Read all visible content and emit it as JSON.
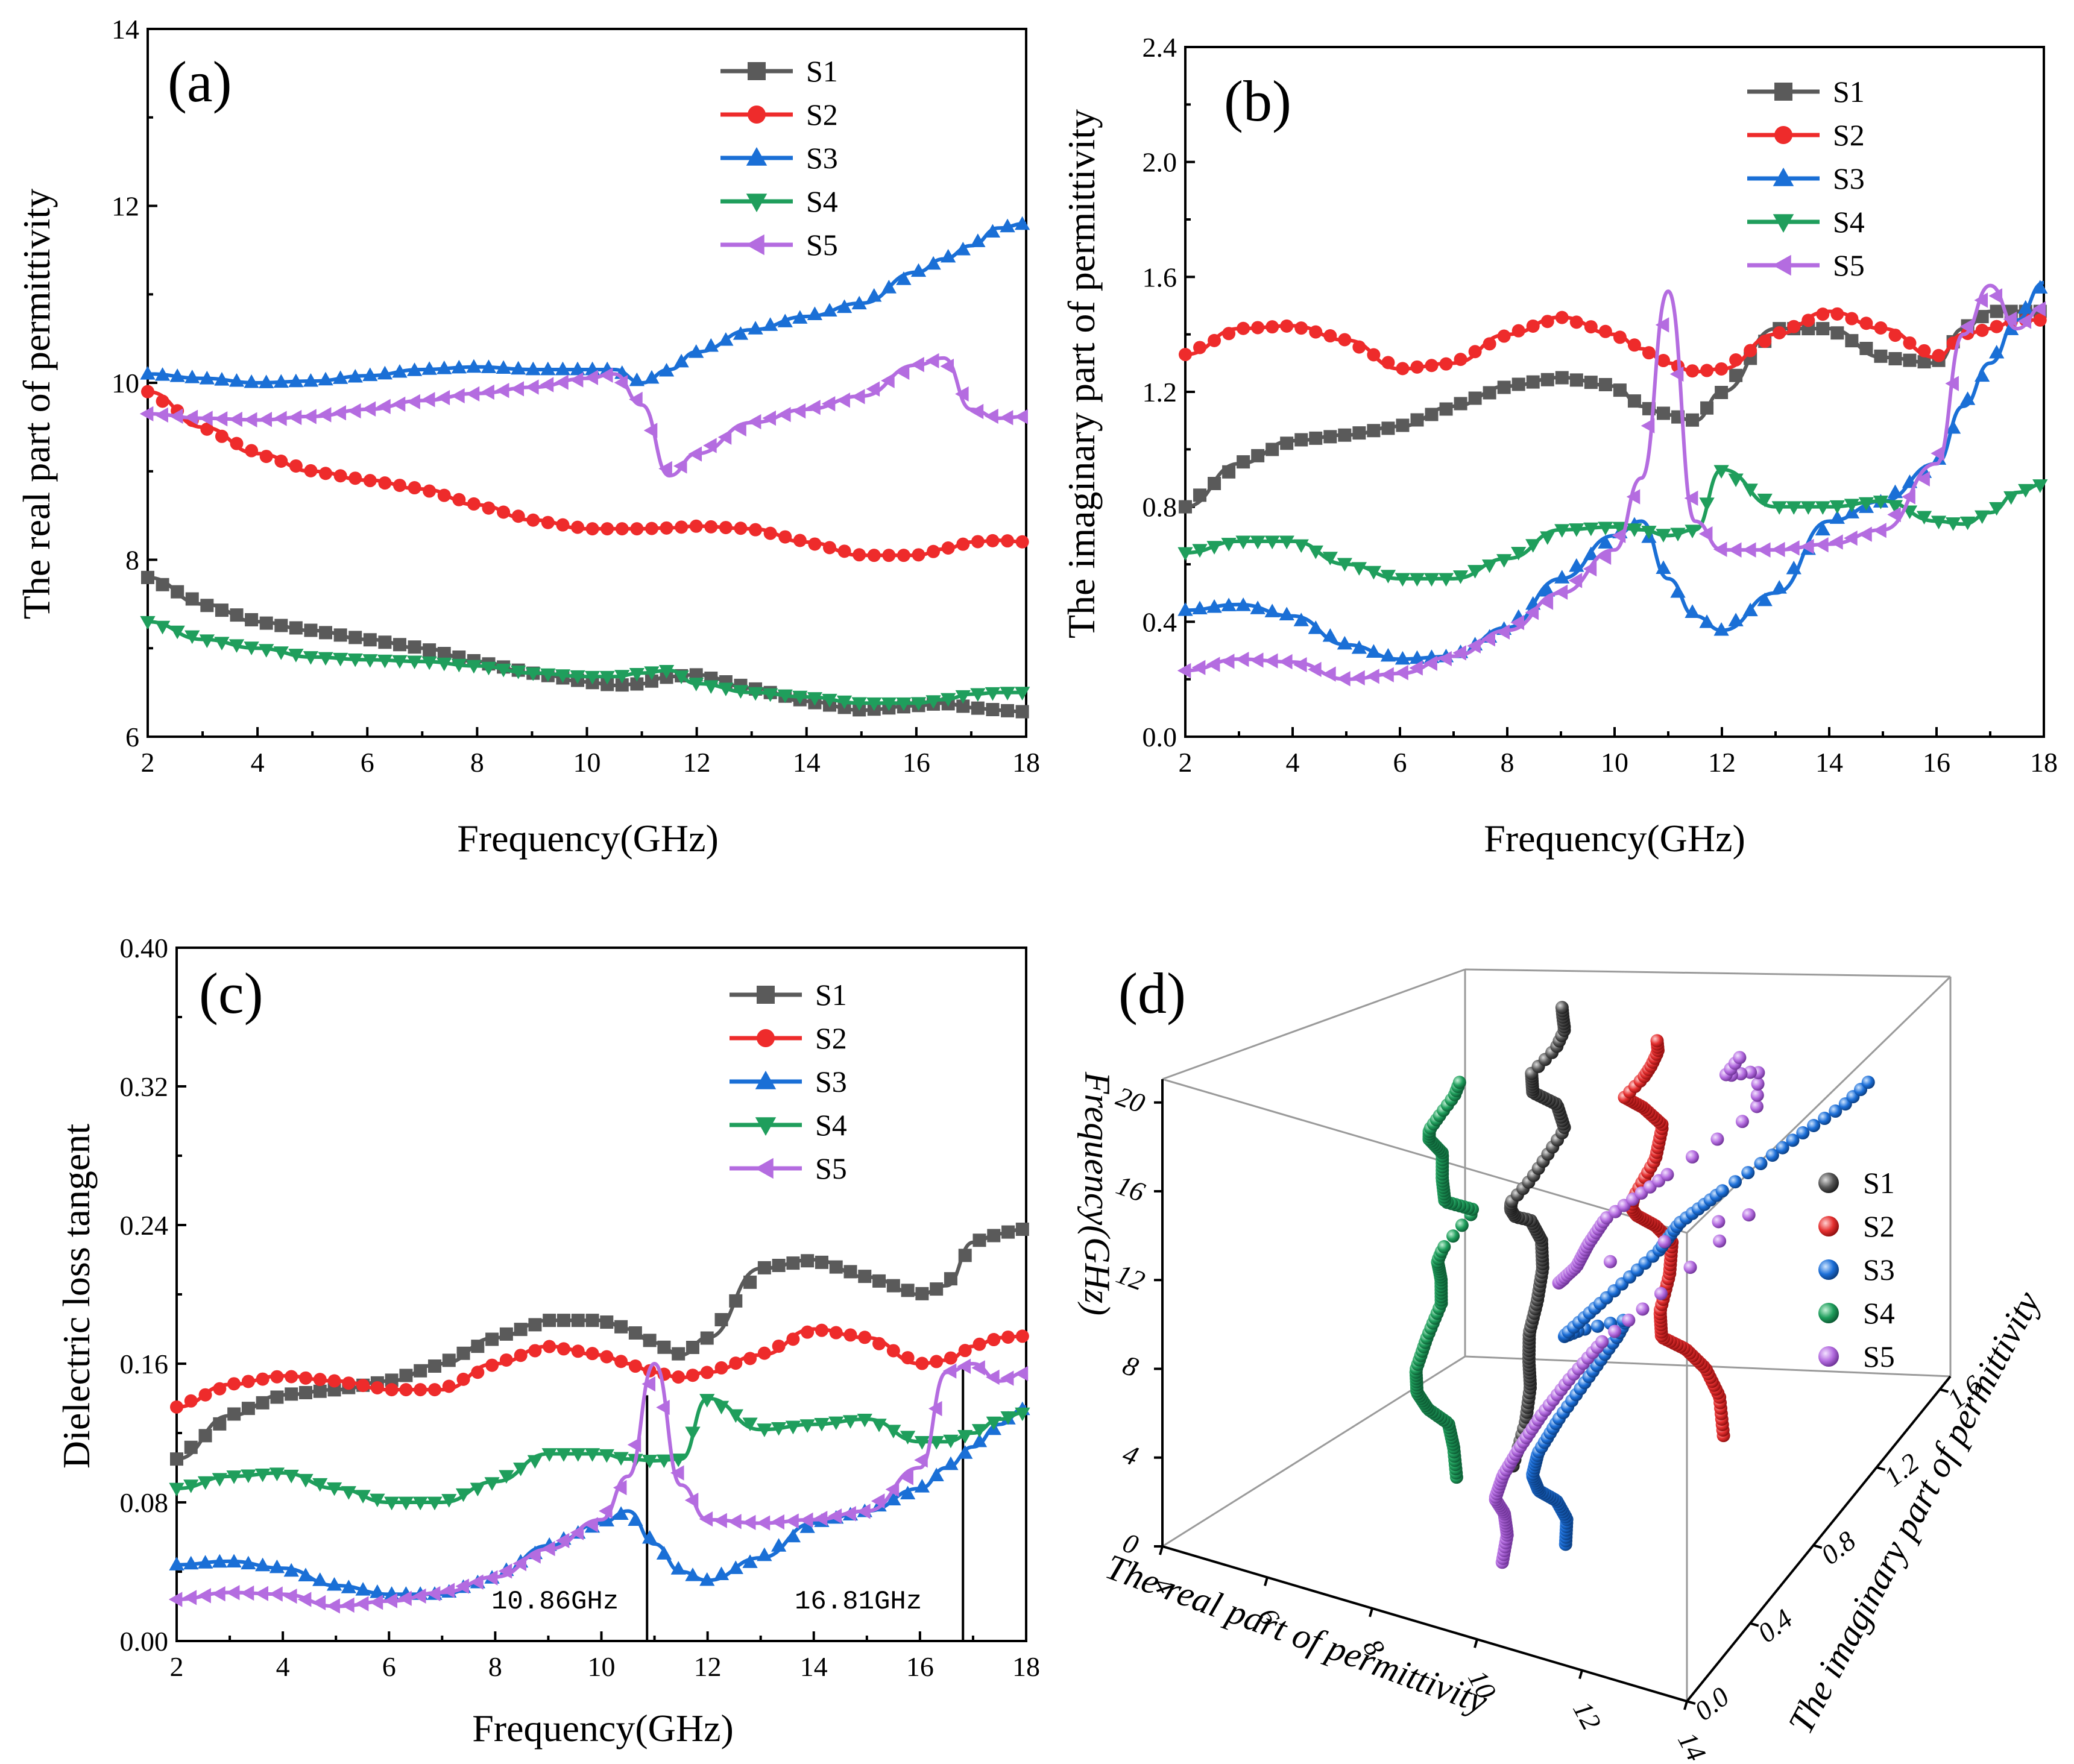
{
  "colors": {
    "S1": "#5a5a5a",
    "S2": "#ee2b2b",
    "S3": "#1a6fd6",
    "S4": "#1f9e5c",
    "S5": "#b46ce0"
  },
  "markers": {
    "S1": "square",
    "S2": "circle",
    "S3": "triangle-up",
    "S4": "triangle-down",
    "S5": "triangle-left"
  },
  "panels": {
    "a": {
      "label": "(a)",
      "xlabel": "Frequency(GHz)",
      "ylabel": "The real part of  permittivity"
    },
    "b": {
      "label": "(b)",
      "xlabel": "Frequency(GHz)",
      "ylabel": "The imaginary part of permittivity"
    },
    "c": {
      "label": "(c)",
      "xlabel": "Frequency(GHz)",
      "ylabel": "Dielectric loss tangent",
      "annotations": [
        "10.86GHz",
        "16.81GHz"
      ]
    },
    "d": {
      "label": "(d)",
      "xlabel": "The real part of permittivity",
      "ylabel": "Frequency(GHz)",
      "zlabel": "The imaginary part of permittivity"
    }
  },
  "chart_data": [
    {
      "id": "a",
      "type": "line",
      "title": "(a)",
      "xlabel": "Frequency(GHz)",
      "ylabel": "The real part of  permittivity",
      "xlim": [
        2,
        18
      ],
      "ylim": [
        6,
        14
      ],
      "xticks": [
        "2",
        "4",
        "6",
        "8",
        "10",
        "12",
        "14",
        "16",
        "18"
      ],
      "yticks": [
        "6",
        "8",
        "10",
        "12",
        "14"
      ],
      "legend": "top-right",
      "x": [
        2,
        3,
        4,
        5,
        6,
        7,
        8,
        9,
        10,
        10.5,
        11,
        11.5,
        12,
        13,
        14,
        15,
        16,
        16.5,
        17,
        17.5,
        18
      ],
      "series": [
        {
          "name": "S1",
          "values": [
            7.8,
            7.5,
            7.3,
            7.2,
            7.1,
            7.0,
            6.85,
            6.72,
            6.62,
            6.58,
            6.6,
            6.68,
            6.7,
            6.55,
            6.4,
            6.3,
            6.35,
            6.38,
            6.33,
            6.3,
            6.28
          ]
        },
        {
          "name": "S2",
          "values": [
            9.9,
            9.5,
            9.2,
            9.0,
            8.9,
            8.8,
            8.62,
            8.45,
            8.35,
            8.35,
            8.35,
            8.36,
            8.38,
            8.35,
            8.2,
            8.05,
            8.05,
            8.12,
            8.2,
            8.22,
            8.2
          ]
        },
        {
          "name": "S3",
          "values": [
            10.1,
            10.05,
            10.0,
            10.02,
            10.08,
            10.15,
            10.18,
            10.15,
            10.15,
            10.15,
            10.0,
            10.15,
            10.35,
            10.6,
            10.75,
            10.9,
            11.25,
            11.4,
            11.55,
            11.75,
            11.8
          ]
        },
        {
          "name": "S4",
          "values": [
            7.3,
            7.1,
            7.0,
            6.9,
            6.87,
            6.85,
            6.8,
            6.72,
            6.68,
            6.68,
            6.72,
            6.75,
            6.6,
            6.5,
            6.45,
            6.38,
            6.38,
            6.42,
            6.48,
            6.5,
            6.5
          ]
        },
        {
          "name": "S5",
          "values": [
            9.65,
            9.6,
            9.58,
            9.62,
            9.7,
            9.8,
            9.88,
            9.95,
            10.05,
            10.1,
            9.75,
            8.95,
            9.2,
            9.55,
            9.7,
            9.85,
            10.2,
            10.28,
            9.7,
            9.6,
            9.62
          ]
        }
      ]
    },
    {
      "id": "b",
      "type": "line",
      "title": "(b)",
      "xlabel": "Frequency(GHz)",
      "ylabel": "The imaginary part of permittivity",
      "xlim": [
        2,
        18
      ],
      "ylim": [
        0,
        2.4
      ],
      "xticks": [
        "2",
        "4",
        "6",
        "8",
        "10",
        "12",
        "14",
        "16",
        "18"
      ],
      "yticks": [
        "0.0",
        "0.4",
        "0.8",
        "1.2",
        "1.6",
        "2.0",
        "2.4"
      ],
      "legend": "top-right",
      "x": [
        2,
        3,
        4,
        5,
        6,
        7,
        8,
        9,
        10,
        10.5,
        11,
        11.5,
        12,
        13,
        14,
        15,
        16,
        16.5,
        17,
        17.5,
        18
      ],
      "series": [
        {
          "name": "S1",
          "values": [
            0.8,
            0.95,
            1.03,
            1.05,
            1.08,
            1.15,
            1.22,
            1.25,
            1.22,
            1.15,
            1.12,
            1.1,
            1.2,
            1.42,
            1.42,
            1.32,
            1.3,
            1.42,
            1.48,
            1.48,
            1.48
          ]
        },
        {
          "name": "S2",
          "values": [
            1.33,
            1.42,
            1.43,
            1.38,
            1.28,
            1.3,
            1.4,
            1.46,
            1.4,
            1.35,
            1.3,
            1.27,
            1.28,
            1.4,
            1.48,
            1.42,
            1.32,
            1.4,
            1.42,
            1.45,
            1.45
          ]
        },
        {
          "name": "S3",
          "values": [
            0.44,
            0.46,
            0.42,
            0.32,
            0.27,
            0.28,
            0.38,
            0.55,
            0.7,
            0.75,
            0.55,
            0.42,
            0.37,
            0.5,
            0.75,
            0.82,
            0.95,
            1.15,
            1.3,
            1.45,
            1.58
          ]
        },
        {
          "name": "S4",
          "values": [
            0.64,
            0.68,
            0.68,
            0.6,
            0.55,
            0.55,
            0.62,
            0.72,
            0.73,
            0.72,
            0.7,
            0.72,
            0.93,
            0.8,
            0.8,
            0.82,
            0.75,
            0.74,
            0.78,
            0.85,
            0.88
          ]
        },
        {
          "name": "S5",
          "values": [
            0.23,
            0.27,
            0.26,
            0.2,
            0.22,
            0.28,
            0.37,
            0.5,
            0.65,
            0.9,
            1.55,
            0.75,
            0.65,
            0.65,
            0.67,
            0.72,
            0.95,
            1.4,
            1.57,
            1.42,
            1.5
          ]
        }
      ]
    },
    {
      "id": "c",
      "type": "line",
      "title": "(c)",
      "xlabel": "Frequency(GHz)",
      "ylabel": "Dielectric loss tangent",
      "xlim": [
        2,
        18
      ],
      "ylim": [
        0,
        0.4
      ],
      "xticks": [
        "2",
        "4",
        "6",
        "8",
        "10",
        "12",
        "14",
        "16",
        "18"
      ],
      "yticks": [
        "0.00",
        "0.08",
        "0.16",
        "0.24",
        "0.32",
        "0.40"
      ],
      "legend": "top-right",
      "annotations": [
        {
          "x": 10.86,
          "text": "10.86GHz"
        },
        {
          "x": 16.81,
          "text": "16.81GHz"
        }
      ],
      "x": [
        2,
        3,
        4,
        5,
        6,
        7,
        8,
        9,
        10,
        10.5,
        11,
        11.5,
        12,
        13,
        14,
        15,
        16,
        16.5,
        17,
        17.5,
        18
      ],
      "series": [
        {
          "name": "S1",
          "values": [
            0.105,
            0.13,
            0.142,
            0.145,
            0.15,
            0.16,
            0.175,
            0.185,
            0.185,
            0.18,
            0.172,
            0.165,
            0.175,
            0.215,
            0.22,
            0.21,
            0.2,
            0.205,
            0.23,
            0.235,
            0.238
          ]
        },
        {
          "name": "S2",
          "values": [
            0.135,
            0.148,
            0.153,
            0.15,
            0.145,
            0.145,
            0.16,
            0.17,
            0.165,
            0.16,
            0.155,
            0.152,
            0.155,
            0.165,
            0.18,
            0.175,
            0.16,
            0.162,
            0.17,
            0.175,
            0.176
          ]
        },
        {
          "name": "S3",
          "values": [
            0.044,
            0.046,
            0.042,
            0.032,
            0.027,
            0.027,
            0.037,
            0.055,
            0.068,
            0.075,
            0.056,
            0.04,
            0.035,
            0.048,
            0.068,
            0.075,
            0.088,
            0.1,
            0.112,
            0.125,
            0.135
          ]
        },
        {
          "name": "S4",
          "values": [
            0.088,
            0.095,
            0.097,
            0.088,
            0.08,
            0.08,
            0.092,
            0.108,
            0.108,
            0.105,
            0.104,
            0.105,
            0.14,
            0.122,
            0.125,
            0.128,
            0.115,
            0.115,
            0.12,
            0.128,
            0.132
          ]
        },
        {
          "name": "S5",
          "values": [
            0.024,
            0.028,
            0.027,
            0.02,
            0.023,
            0.028,
            0.037,
            0.053,
            0.07,
            0.095,
            0.16,
            0.09,
            0.07,
            0.068,
            0.07,
            0.075,
            0.1,
            0.155,
            0.16,
            0.15,
            0.155
          ]
        }
      ]
    },
    {
      "id": "d",
      "type": "scatter",
      "title": "(d)",
      "xlabel": "The real part of permittivity",
      "ylabel": "Frequency(GHz)",
      "zlabel": "The imaginary part of permittivity",
      "xlim": [
        4,
        14
      ],
      "ylim": [
        0,
        20
      ],
      "zlim": [
        0,
        1.6
      ],
      "xticks": [
        "4",
        "6",
        "8",
        "10",
        "12",
        "14"
      ],
      "yticks": [
        "0",
        "4",
        "8",
        "12",
        "16",
        "20"
      ],
      "zticks": [
        "0.0",
        "0.4",
        "0.8",
        "1.2",
        "1.6"
      ],
      "legend": "right",
      "series": [
        {
          "name": "S1"
        },
        {
          "name": "S2"
        },
        {
          "name": "S3"
        },
        {
          "name": "S4"
        },
        {
          "name": "S5"
        }
      ]
    }
  ]
}
